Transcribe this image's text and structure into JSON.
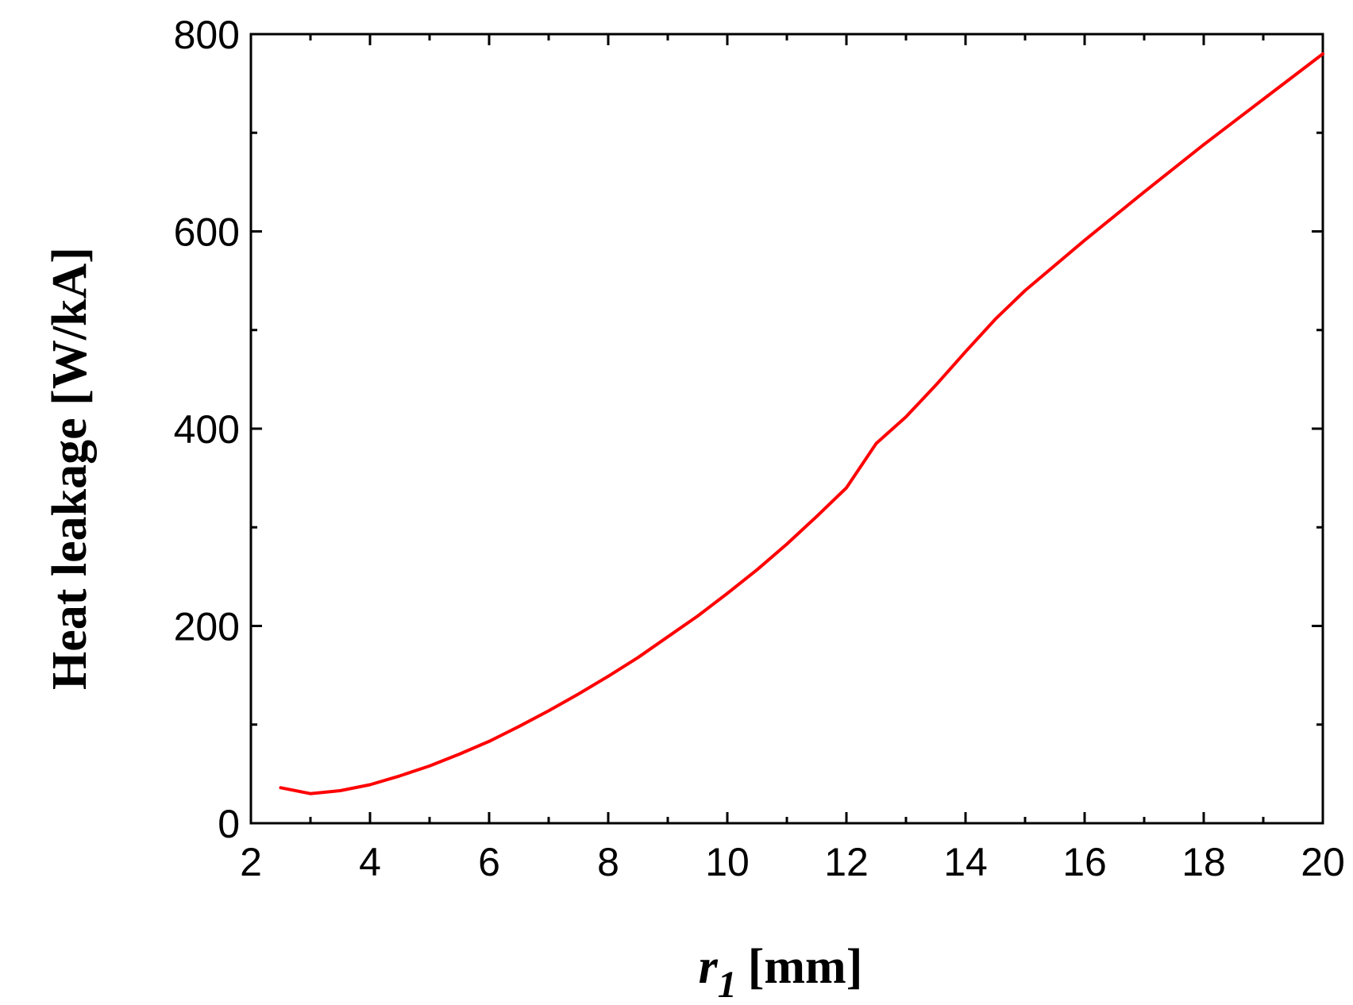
{
  "chart_data": {
    "type": "line",
    "title": "",
    "xlabel_var": "r",
    "xlabel_sub": "1",
    "xlabel_unit": "[mm]",
    "ylabel": "Heat leakage  [W/kA]",
    "xlim": [
      2,
      20
    ],
    "ylim": [
      0,
      800
    ],
    "xticks": [
      2,
      4,
      6,
      8,
      10,
      12,
      14,
      16,
      18,
      20
    ],
    "yticks": [
      0,
      200,
      400,
      600,
      800
    ],
    "x_minor_step": 1,
    "y_minor_step": 100,
    "grid": false,
    "legend": "none",
    "series": [
      {
        "color": "#ff0000",
        "x": [
          2.5,
          3.0,
          3.5,
          4.0,
          4.5,
          5.0,
          5.5,
          6.0,
          6.5,
          7.0,
          7.5,
          8.0,
          8.5,
          9.0,
          9.5,
          10.0,
          10.5,
          11.0,
          11.5,
          12.0,
          12.5,
          13.0,
          13.5,
          14.0,
          14.5,
          15.0,
          16.0,
          17.0,
          18.0,
          19.0,
          20.0
        ],
        "y": [
          36,
          30,
          33,
          39,
          48,
          58,
          70,
          83,
          98,
          114,
          131,
          149,
          168,
          189,
          210,
          233,
          257,
          283,
          311,
          340,
          385,
          412,
          444,
          478,
          511,
          540,
          591,
          640,
          688,
          734,
          780
        ]
      }
    ]
  }
}
